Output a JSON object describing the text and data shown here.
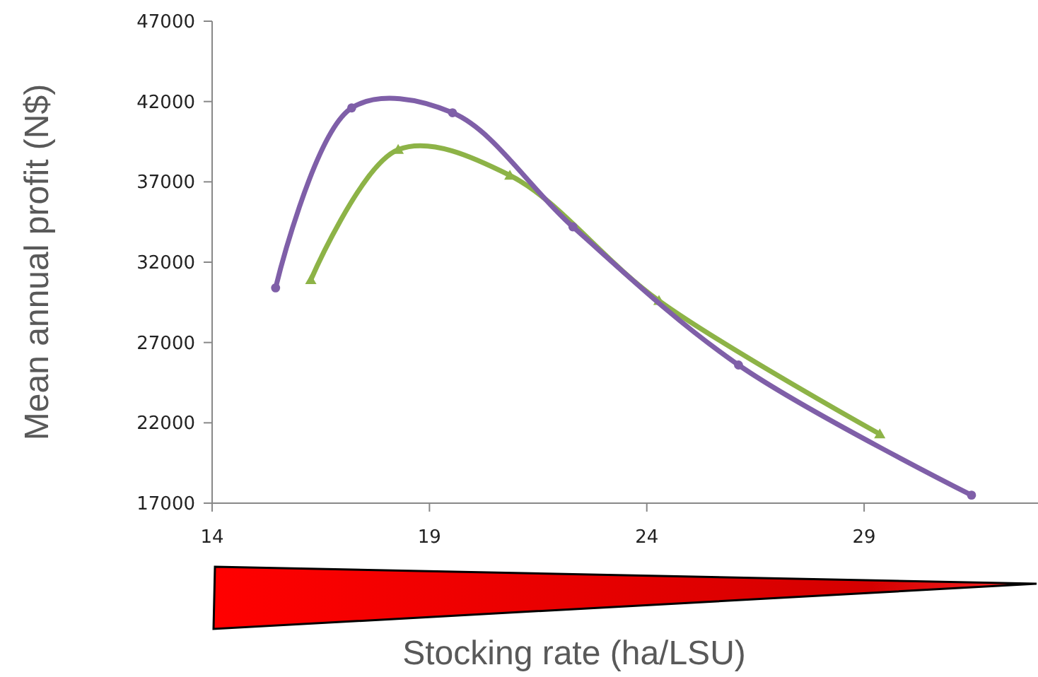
{
  "chart_data": {
    "type": "line",
    "xlabel": "Stocking rate (ha/LSU)",
    "ylabel": "Mean annual profit (N$)",
    "xlim": [
      14,
      33
    ],
    "xticks": [
      14,
      19,
      24,
      29
    ],
    "ylim": [
      17000,
      47000
    ],
    "yticks": [
      17000,
      22000,
      27000,
      32000,
      37000,
      42000,
      47000
    ],
    "grid": false,
    "line_style": "solid",
    "series": [
      {
        "color": "#7f5fa8",
        "marker": "circle",
        "x": [
          15.46,
          17.21,
          19.53,
          22.3,
          26.11,
          31.47
        ],
        "values": [
          30400,
          41600,
          41300,
          34200,
          25600,
          17500
        ]
      },
      {
        "color": "#8db347",
        "marker": "triangle",
        "x": [
          16.27,
          18.28,
          20.85,
          24.28,
          29.36
        ],
        "values": [
          30900,
          39000,
          37400,
          29600,
          21300
        ]
      }
    ]
  }
}
